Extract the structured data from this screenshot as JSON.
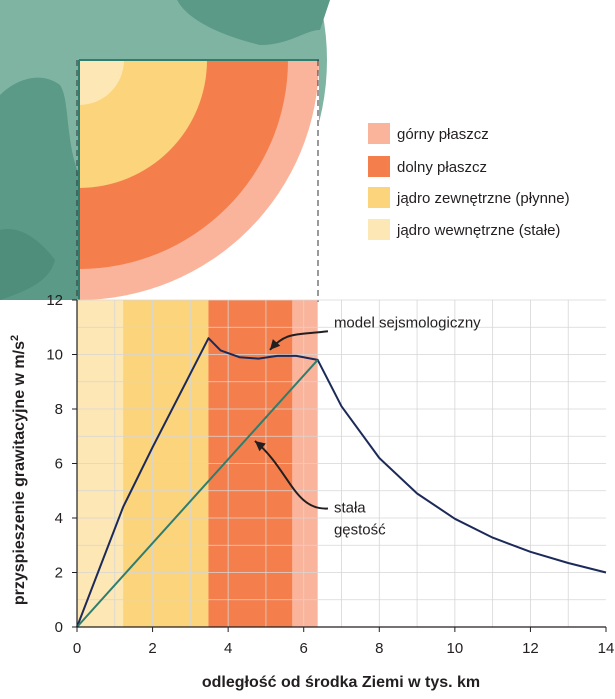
{
  "colors": {
    "upper_mantle": "#fbb49c",
    "lower_mantle": "#f47f4c",
    "outer_core": "#fbd47c",
    "inner_core": "#fde7b5",
    "earth_map": "#7fb4a3",
    "land": "#5a9a86",
    "seismic_line": "#1c2a5a",
    "constant_line": "#2f7d6e"
  },
  "legend": [
    {
      "label": "górny płaszcz",
      "color": "#fbb49c"
    },
    {
      "label": "dolny płaszcz",
      "color": "#f47f4c"
    },
    {
      "label": "jądro zewnętrzne (płynne)",
      "color": "#fbd47c"
    },
    {
      "label": "jądro wewnętrzne (stałe)",
      "color": "#fde7b5"
    }
  ],
  "chart_data": {
    "type": "line",
    "xlabel": "odległość od środka Ziemi w tys. km",
    "ylabel": "przyspieszenie grawitacyjne w m/s²",
    "ylabel_main": "przyspieszenie grawitacyjne w m/s",
    "ylabel_sup": "2",
    "xlim": [
      0,
      14
    ],
    "ylim": [
      0,
      12
    ],
    "xticks": [
      0,
      2,
      4,
      6,
      8,
      10,
      12,
      14
    ],
    "yticks": [
      0,
      2,
      4,
      6,
      8,
      10,
      12
    ],
    "regions": [
      {
        "name": "jądro wewnętrzne (stałe)",
        "from": 0,
        "to": 1.22
      },
      {
        "name": "jądro zewnętrzne (płynne)",
        "from": 1.22,
        "to": 3.48
      },
      {
        "name": "dolny płaszcz",
        "from": 3.48,
        "to": 5.7
      },
      {
        "name": "górny płaszcz",
        "from": 5.7,
        "to": 6.37
      }
    ],
    "series": [
      {
        "name": "model sejsmologiczny",
        "x": [
          0,
          1.22,
          2.0,
          3.0,
          3.48,
          3.8,
          4.3,
          4.8,
          5.3,
          5.8,
          6.37,
          7.0,
          8.0,
          9.0,
          10.0,
          11.0,
          12.0,
          13.0,
          14.0
        ],
        "y": [
          0,
          4.4,
          6.6,
          9.3,
          10.6,
          10.15,
          9.9,
          9.85,
          9.95,
          9.95,
          9.8,
          8.1,
          6.2,
          4.9,
          3.97,
          3.28,
          2.76,
          2.35,
          2.0
        ]
      },
      {
        "name": "stała gęstość",
        "x": [
          0,
          6.37
        ],
        "y": [
          0,
          9.8
        ]
      }
    ],
    "annotations": [
      {
        "text": "model sejsmologiczny",
        "x": 6.8,
        "y": 11.0,
        "points_to": [
          5.0,
          9.95
        ]
      },
      {
        "text": "stała",
        "x": 6.8,
        "y": 4.2,
        "points_to": [
          4.55,
          6.9
        ]
      },
      {
        "text": "gęstość",
        "x": 6.8,
        "y": 3.4
      }
    ]
  }
}
